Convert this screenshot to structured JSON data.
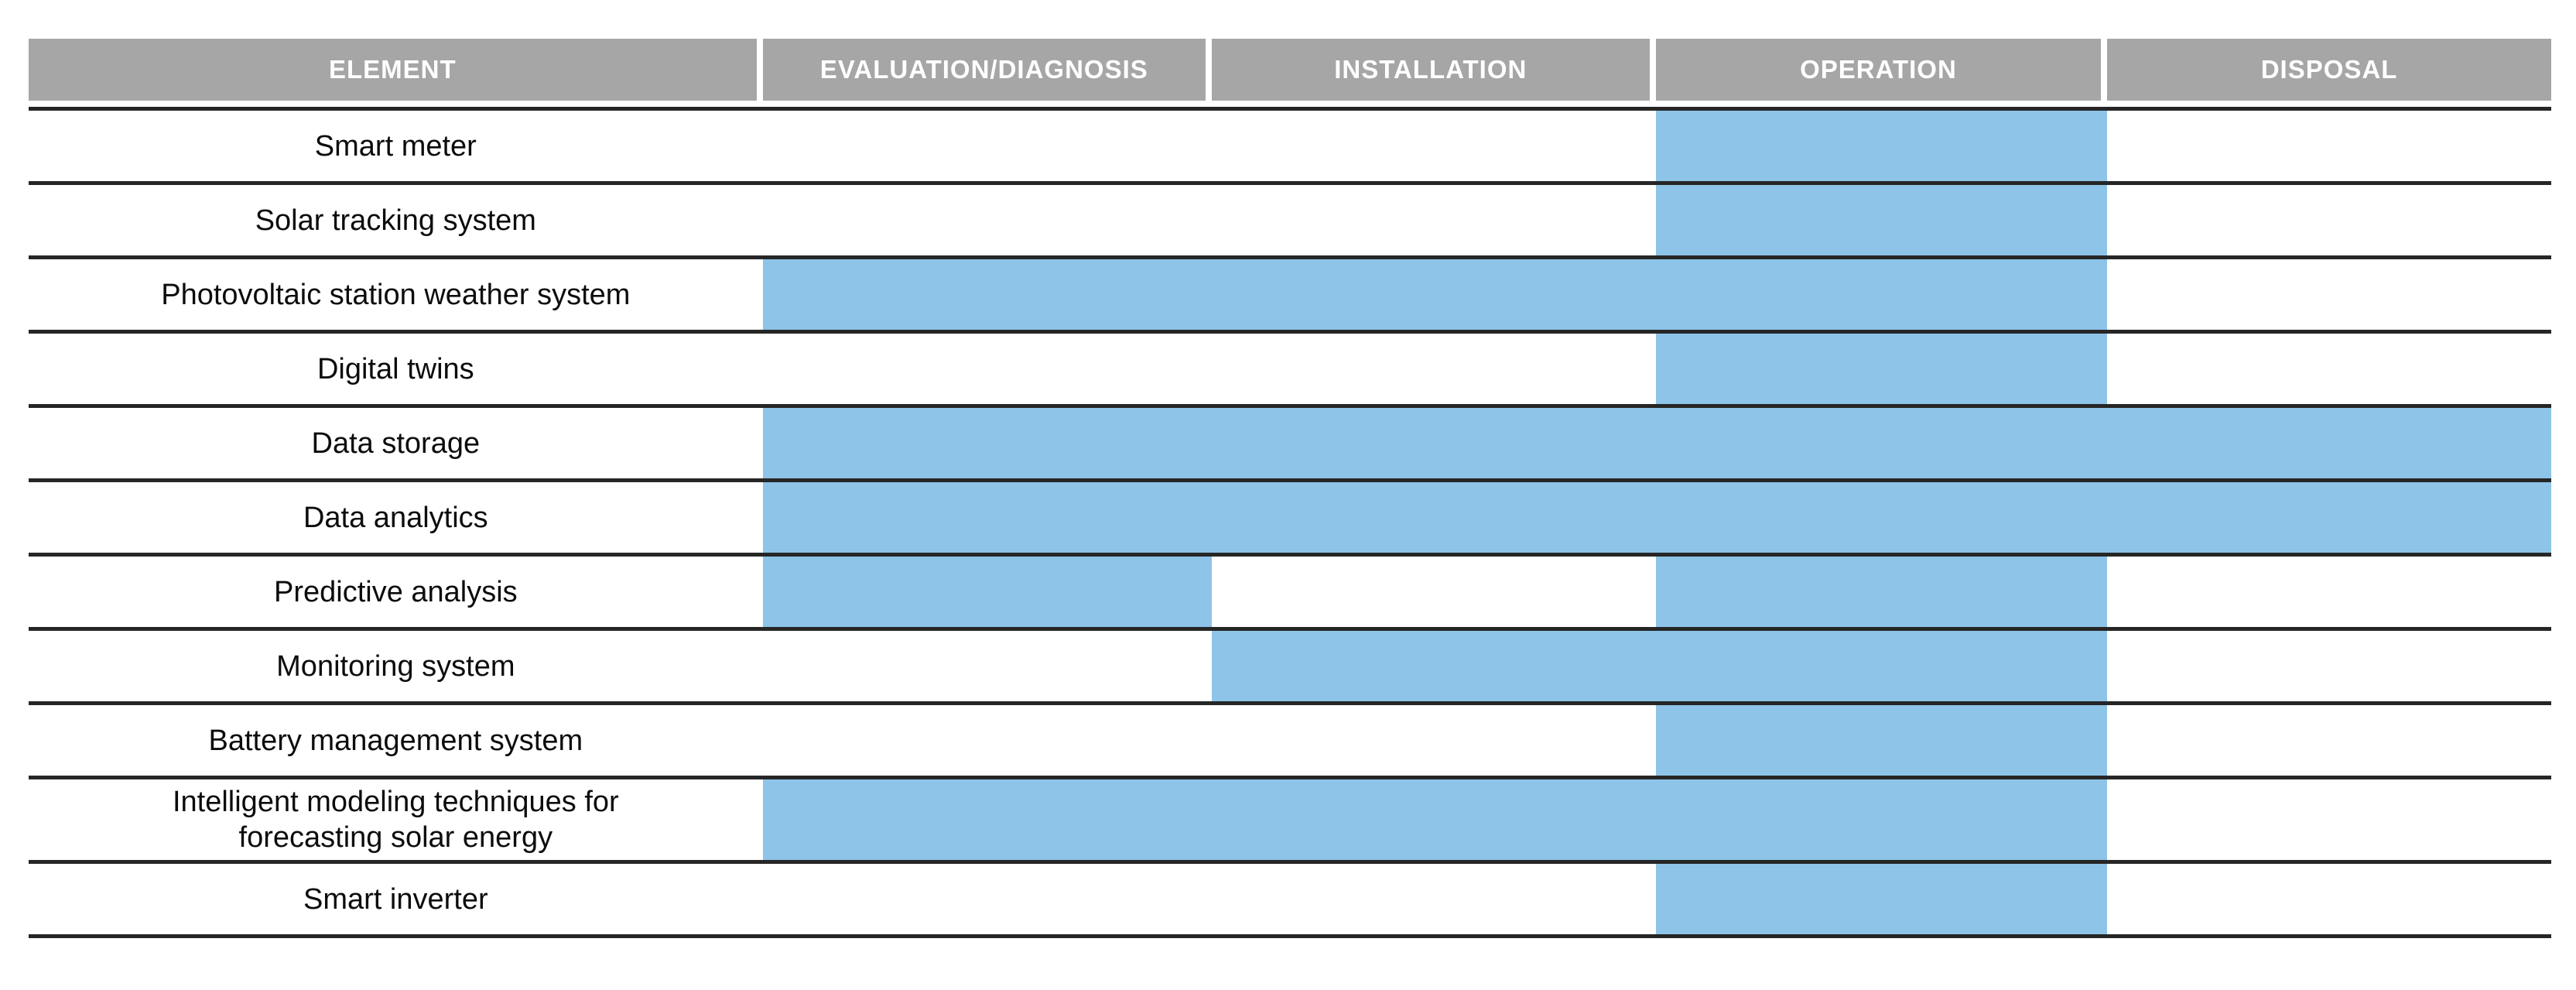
{
  "chart_data": {
    "type": "table",
    "description_of_visual": "Gantt-style matrix: smart PV elements vs life-cycle phases; active phases shaded light blue",
    "columns": [
      "ELEMENT",
      "EVALUATION/DIAGNOSIS",
      "INSTALLATION",
      "OPERATION",
      "DISPOSAL"
    ],
    "phases": [
      "EVALUATION/DIAGNOSIS",
      "INSTALLATION",
      "OPERATION",
      "DISPOSAL"
    ],
    "rows": [
      {
        "element": "Smart meter",
        "cells": [
          false,
          false,
          true,
          false
        ],
        "active_phases": [
          "OPERATION"
        ]
      },
      {
        "element": "Solar tracking system",
        "cells": [
          false,
          false,
          true,
          false
        ],
        "active_phases": [
          "OPERATION"
        ]
      },
      {
        "element": "Photovoltaic station weather system",
        "cells": [
          true,
          true,
          true,
          false
        ],
        "active_phases": [
          "EVALUATION/DIAGNOSIS",
          "INSTALLATION",
          "OPERATION"
        ]
      },
      {
        "element": "Digital twins",
        "cells": [
          false,
          false,
          true,
          false
        ],
        "active_phases": [
          "OPERATION"
        ]
      },
      {
        "element": "Data storage",
        "cells": [
          true,
          true,
          true,
          true
        ],
        "active_phases": [
          "EVALUATION/DIAGNOSIS",
          "INSTALLATION",
          "OPERATION",
          "DISPOSAL"
        ]
      },
      {
        "element": "Data analytics",
        "cells": [
          true,
          true,
          true,
          true
        ],
        "active_phases": [
          "EVALUATION/DIAGNOSIS",
          "INSTALLATION",
          "OPERATION",
          "DISPOSAL"
        ]
      },
      {
        "element": "Predictive analysis",
        "cells": [
          true,
          false,
          true,
          false
        ],
        "active_phases": [
          "EVALUATION/DIAGNOSIS",
          "OPERATION"
        ]
      },
      {
        "element": "Monitoring system",
        "cells": [
          false,
          true,
          true,
          false
        ],
        "active_phases": [
          "INSTALLATION",
          "OPERATION"
        ]
      },
      {
        "element": "Battery management system",
        "cells": [
          false,
          false,
          true,
          false
        ],
        "active_phases": [
          "OPERATION"
        ]
      },
      {
        "element": "Intelligent modeling techniques for\nforecasting solar energy",
        "cells": [
          true,
          true,
          true,
          false
        ],
        "active_phases": [
          "EVALUATION/DIAGNOSIS",
          "INSTALLATION",
          "OPERATION"
        ]
      },
      {
        "element": "Smart inverter",
        "cells": [
          false,
          false,
          true,
          false
        ],
        "active_phases": [
          "OPERATION"
        ]
      }
    ],
    "colors": {
      "active_fill": "#8DC4E8",
      "header_fill": "#A6A6A6",
      "header_text": "#FFFFFF",
      "row_line": "#262626",
      "label_text": "#0C0C0C",
      "background": "#FFFFFF"
    },
    "legend_position": "none",
    "grid": "horizontal-rules-only"
  }
}
